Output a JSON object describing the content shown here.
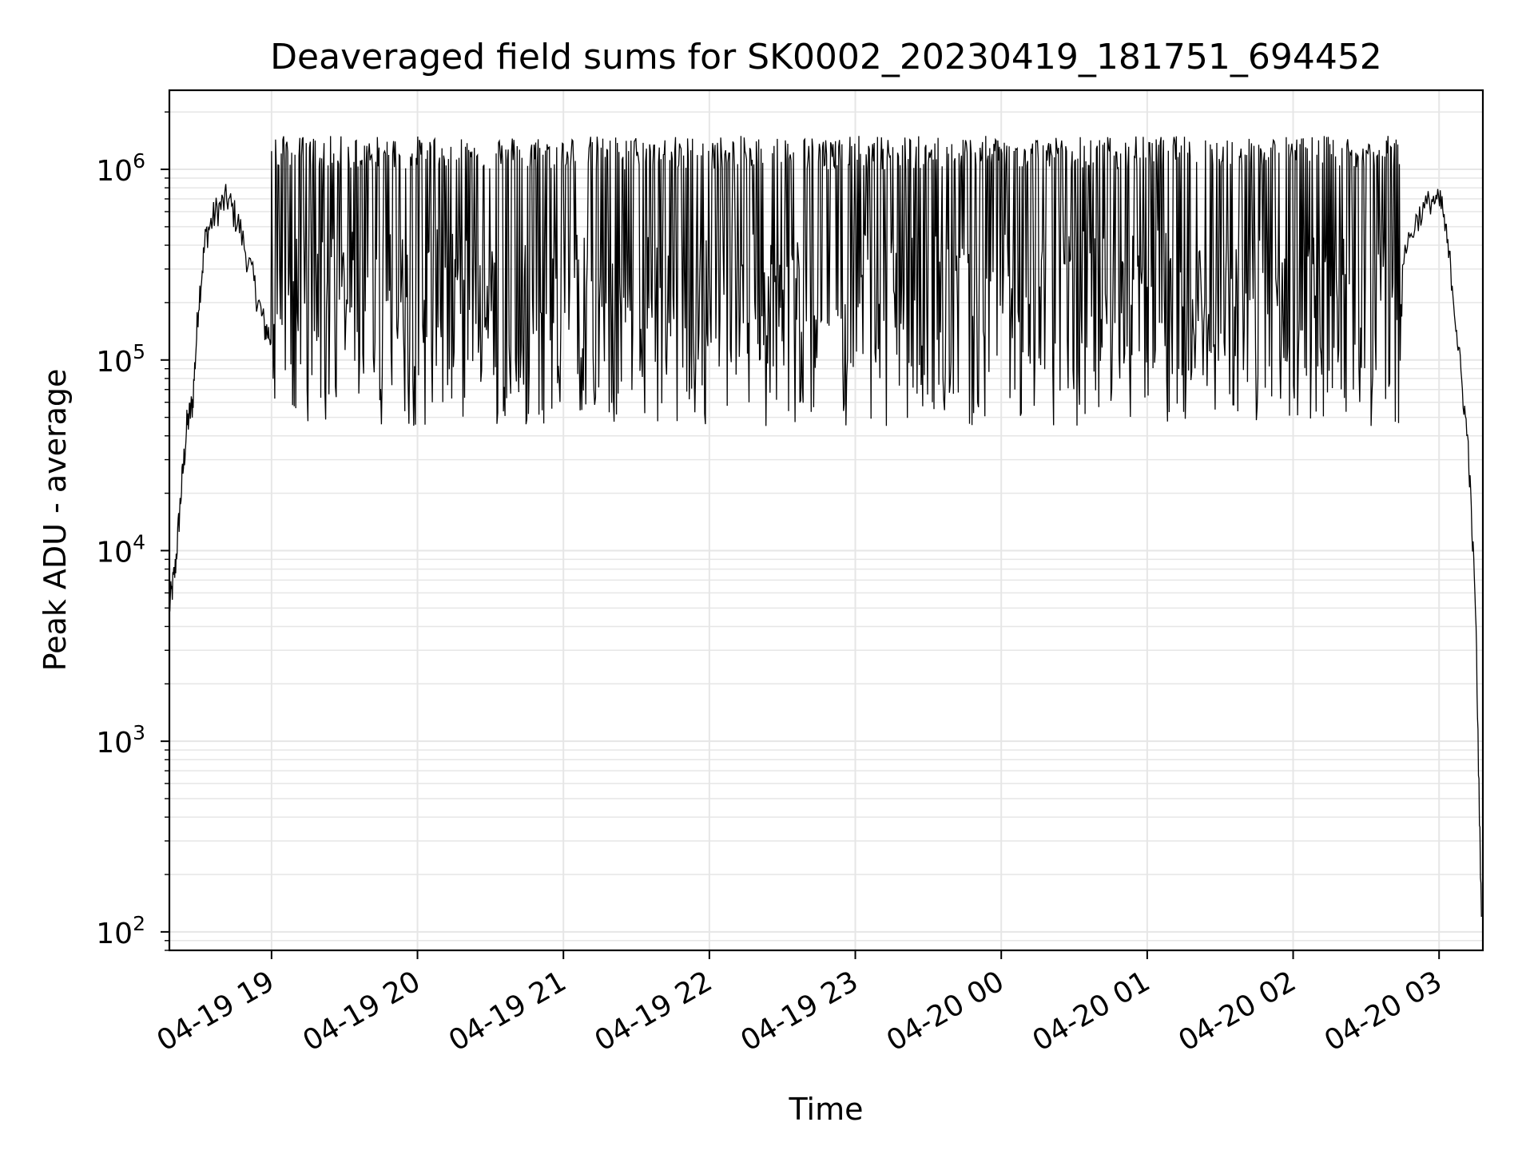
{
  "chart_data": {
    "type": "line",
    "title": "Deaveraged field sums for SK0002_20230419_181751_694452",
    "xlabel": "Time",
    "ylabel": "Peak ADU - average",
    "yscale": "log",
    "ylim": [
      80,
      2600000
    ],
    "xlim_hours": [
      18.3,
      27.3
    ],
    "grid": true,
    "grid_minor": true,
    "line_color": "#000000",
    "grid_color": "#e6e6e6",
    "x_ticks": [
      {
        "hour": 19,
        "label": "04-19 19"
      },
      {
        "hour": 20,
        "label": "04-19 20"
      },
      {
        "hour": 21,
        "label": "04-19 21"
      },
      {
        "hour": 22,
        "label": "04-19 22"
      },
      {
        "hour": 23,
        "label": "04-19 23"
      },
      {
        "hour": 24,
        "label": "04-20 00"
      },
      {
        "hour": 25,
        "label": "04-20 01"
      },
      {
        "hour": 26,
        "label": "04-20 02"
      },
      {
        "hour": 27,
        "label": "04-20 03"
      }
    ],
    "y_ticks": [
      {
        "value": 100,
        "base": "10",
        "exp": "2"
      },
      {
        "value": 1000,
        "base": "10",
        "exp": "3"
      },
      {
        "value": 10000,
        "base": "10",
        "exp": "4"
      },
      {
        "value": 100000,
        "base": "10",
        "exp": "5"
      },
      {
        "value": 1000000,
        "base": "10",
        "exp": "6"
      }
    ],
    "envelope_points": [
      [
        18.3,
        5000
      ],
      [
        18.34,
        8000
      ],
      [
        18.38,
        20000
      ],
      [
        18.42,
        45000
      ],
      [
        18.46,
        60000
      ],
      [
        18.5,
        200000
      ],
      [
        18.55,
        450000
      ],
      [
        18.62,
        600000
      ],
      [
        18.7,
        700000
      ],
      [
        18.78,
        500000
      ],
      [
        18.88,
        250000
      ],
      [
        18.95,
        150000
      ],
      [
        19.0,
        130000
      ],
      [
        26.75,
        350000
      ],
      [
        26.85,
        550000
      ],
      [
        26.95,
        700000
      ],
      [
        27.02,
        650000
      ],
      [
        27.08,
        300000
      ],
      [
        27.14,
        100000
      ],
      [
        27.2,
        35000
      ],
      [
        27.25,
        5000
      ],
      [
        27.29,
        120
      ]
    ],
    "noisy_segment": {
      "start_hour": 19.0,
      "end_hour": 26.75,
      "peak_range": [
        1000000,
        1500000
      ],
      "trough_range": [
        45000,
        90000
      ],
      "max_value": 1700000,
      "min_value": 35000
    }
  }
}
